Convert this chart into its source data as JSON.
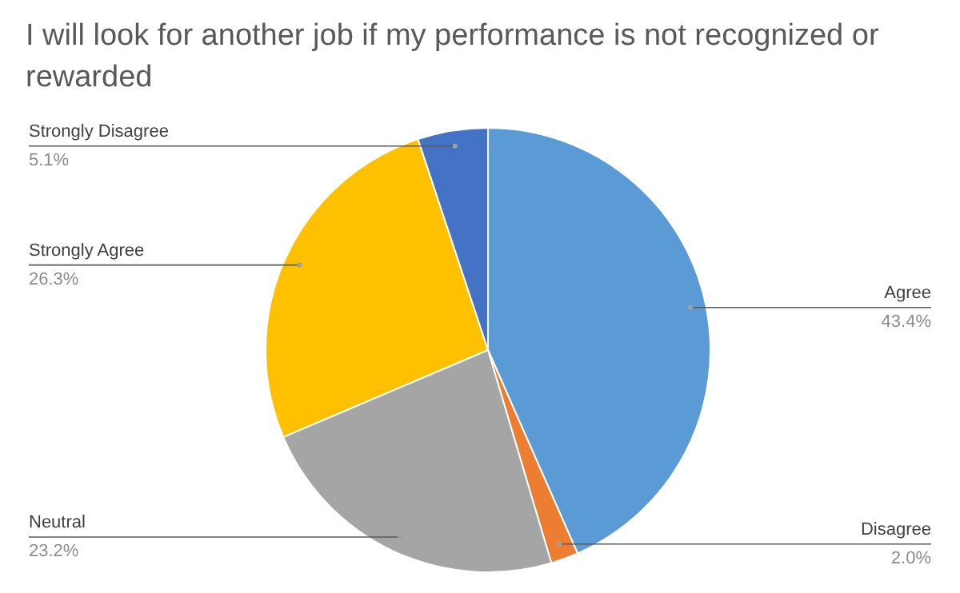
{
  "chart_data": {
    "type": "pie",
    "title": "I will look for another job if my performance is not recognized or rewarded",
    "categories": [
      "Agree",
      "Disagree",
      "Neutral",
      "Strongly Agree",
      "Strongly Disagree"
    ],
    "values": [
      43.4,
      2.0,
      23.2,
      26.3,
      5.1
    ],
    "value_labels": [
      "43.4%",
      "2.0%",
      "23.2%",
      "26.3%",
      "5.1%"
    ],
    "colors": [
      "#5b9bd5",
      "#ed7d31",
      "#a5a5a5",
      "#ffc000",
      "#4472c4"
    ],
    "legend": false
  }
}
